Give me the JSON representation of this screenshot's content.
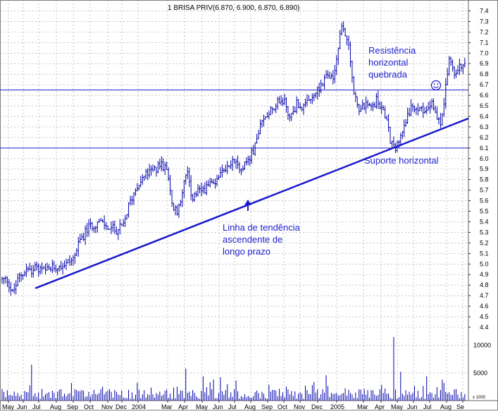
{
  "chart_data": {
    "type": "bar",
    "title": "1 BRISA PRIV(6.870, 6.900, 6.870, 6.890)",
    "price_axis": {
      "ylim": [
        4.4,
        7.45
      ],
      "ticks": [
        "7.4",
        "7.3",
        "7.2",
        "7.1",
        "7.0",
        "6.9",
        "6.8",
        "6.7",
        "6.6",
        "6.5",
        "6.4",
        "6.3",
        "6.2",
        "6.1",
        "6.0",
        "5.9",
        "5.8",
        "5.7",
        "5.6",
        "5.5",
        "5.4",
        "5.3",
        "5.2",
        "5.1",
        "5.0",
        "4.9",
        "4.8",
        "4.7",
        "4.6",
        "4.5",
        "4.4"
      ]
    },
    "volume_axis": {
      "ylim": [
        0,
        12500
      ],
      "ticks": [
        "10000",
        "5000"
      ],
      "unit_label": "x 1000"
    },
    "x_axis_labels": [
      "May",
      "Jun",
      "Jul",
      "Aug",
      "Sep",
      "Oct",
      "Nov",
      "Dec",
      "2004",
      "Mar",
      "Apr",
      "May",
      "Jun",
      "Jul",
      "Aug",
      "Sep",
      "Oct",
      "Nov",
      "Dec",
      "2005",
      "Mar",
      "Apr",
      "May",
      "Jun",
      "Jul",
      "Aug",
      "Se"
    ],
    "price_anchors": [
      [
        0,
        4.85
      ],
      [
        3,
        4.85
      ],
      [
        6,
        4.72
      ],
      [
        10,
        4.88
      ],
      [
        14,
        4.95
      ],
      [
        20,
        4.95
      ],
      [
        25,
        4.93
      ],
      [
        31,
        4.98
      ],
      [
        36,
        5.0
      ],
      [
        41,
        5.05
      ],
      [
        45,
        5.22
      ],
      [
        50,
        5.35
      ],
      [
        56,
        5.4
      ],
      [
        61,
        5.35
      ],
      [
        66,
        5.32
      ],
      [
        70,
        5.36
      ],
      [
        73,
        5.55
      ],
      [
        78,
        5.75
      ],
      [
        83,
        5.85
      ],
      [
        89,
        5.9
      ],
      [
        92,
        5.95
      ],
      [
        96,
        5.85
      ],
      [
        98,
        5.55
      ],
      [
        101,
        5.48
      ],
      [
        104,
        5.7
      ],
      [
        107,
        5.88
      ],
      [
        109,
        5.62
      ],
      [
        113,
        5.68
      ],
      [
        118,
        5.72
      ],
      [
        123,
        5.78
      ],
      [
        128,
        5.9
      ],
      [
        133,
        5.97
      ],
      [
        138,
        5.92
      ],
      [
        143,
        6.0
      ],
      [
        146,
        6.12
      ],
      [
        149,
        6.3
      ],
      [
        154,
        6.45
      ],
      [
        158,
        6.52
      ],
      [
        163,
        6.55
      ],
      [
        166,
        6.38
      ],
      [
        170,
        6.52
      ],
      [
        174,
        6.48
      ],
      [
        178,
        6.55
      ],
      [
        182,
        6.65
      ],
      [
        187,
        6.78
      ],
      [
        191,
        6.75
      ],
      [
        194,
        7.05
      ],
      [
        196,
        7.25
      ],
      [
        199,
        7.15
      ],
      [
        201,
        6.95
      ],
      [
        203,
        6.6
      ],
      [
        206,
        6.48
      ],
      [
        209,
        6.5
      ],
      [
        213,
        6.48
      ],
      [
        216,
        6.55
      ],
      [
        219,
        6.48
      ],
      [
        221,
        6.42
      ],
      [
        224,
        6.18
      ],
      [
        226,
        6.1
      ],
      [
        229,
        6.15
      ],
      [
        232,
        6.35
      ],
      [
        236,
        6.48
      ],
      [
        240,
        6.45
      ],
      [
        244,
        6.48
      ],
      [
        248,
        6.55
      ],
      [
        251,
        6.4
      ],
      [
        253,
        6.3
      ],
      [
        255,
        6.55
      ],
      [
        258,
        6.95
      ],
      [
        261,
        6.8
      ],
      [
        264,
        6.9
      ],
      [
        266,
        6.89
      ]
    ],
    "volume_spikes": [
      [
        17,
        6500
      ],
      [
        106,
        5800
      ],
      [
        126,
        4200
      ],
      [
        187,
        4600
      ],
      [
        226,
        11500
      ],
      [
        230,
        5200
      ],
      [
        245,
        4400
      ]
    ],
    "annotations": {
      "resistance": [
        "Resistência",
        "horizontal",
        "quebrada"
      ],
      "support": "Suporte horizontal",
      "trendline": [
        "Linha de tendência",
        "ascendente de",
        "longo prazo"
      ]
    },
    "resistance_level": 6.65,
    "support_level": 6.1,
    "trendline_points": [
      [
        7,
        4.77
      ],
      [
        266,
        6.38
      ]
    ],
    "grid": true,
    "colors": {
      "bars": "#0000aa",
      "lines": "#1a1acc",
      "annotations": "#1f1fd0",
      "grid": "#a0a0a0"
    }
  }
}
